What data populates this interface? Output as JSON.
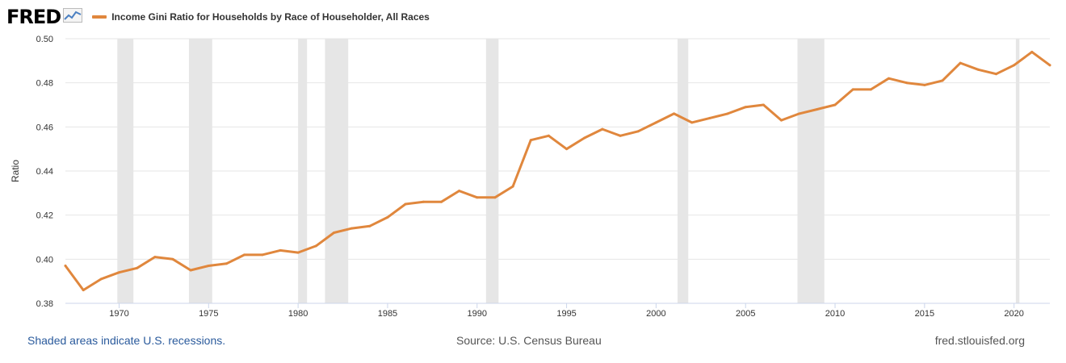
{
  "header": {
    "logo_text": "FRED",
    "logo_icon": "chart-line-icon",
    "legend_label": "Income Gini Ratio for Households by Race of Householder, All Races",
    "accent_color": "#e0873d"
  },
  "footer": {
    "recession_note": "Shaded areas indicate U.S. recessions.",
    "source": "Source: U.S. Census Bureau",
    "site": "fred.stlouisfed.org"
  },
  "chart_data": {
    "type": "line",
    "title": "Income Gini Ratio for Households by Race of Householder, All Races",
    "xlabel": "",
    "ylabel": "Ratio",
    "xlim": [
      1967,
      2022
    ],
    "ylim": [
      0.38,
      0.5
    ],
    "yticks": [
      "0.38",
      "0.40",
      "0.42",
      "0.44",
      "0.46",
      "0.48",
      "0.50"
    ],
    "xticks": [
      "1970",
      "1975",
      "1980",
      "1985",
      "1990",
      "1995",
      "2000",
      "2005",
      "2010",
      "2015",
      "2020"
    ],
    "grid": true,
    "series_color": "#e0873d",
    "recession_color": "#e6e6e6",
    "recessions": [
      [
        1969.9,
        1970.8
      ],
      [
        1973.9,
        1975.2
      ],
      [
        1980.0,
        1980.5
      ],
      [
        1981.5,
        1982.8
      ],
      [
        1990.5,
        1991.2
      ],
      [
        2001.2,
        2001.8
      ],
      [
        2007.9,
        2009.4
      ],
      [
        2020.1,
        2020.3
      ]
    ],
    "series": [
      {
        "x": [
          1967,
          1968,
          1969,
          1970,
          1971,
          1972,
          1973,
          1974,
          1975,
          1976,
          1977,
          1978,
          1979,
          1980,
          1981,
          1982,
          1983,
          1984,
          1985,
          1986,
          1987,
          1988,
          1989,
          1990,
          1991,
          1992,
          1993,
          1994,
          1995,
          1996,
          1997,
          1998,
          1999,
          2000,
          2001,
          2002,
          2003,
          2004,
          2005,
          2006,
          2007,
          2008,
          2009,
          2010,
          2011,
          2012,
          2013,
          2014,
          2015,
          2016,
          2017,
          2018,
          2019,
          2020,
          2021,
          2022
        ],
        "values": [
          0.397,
          0.386,
          0.391,
          0.394,
          0.396,
          0.401,
          0.4,
          0.395,
          0.397,
          0.398,
          0.402,
          0.402,
          0.404,
          0.403,
          0.406,
          0.412,
          0.414,
          0.415,
          0.419,
          0.425,
          0.426,
          0.426,
          0.431,
          0.428,
          0.428,
          0.433,
          0.454,
          0.456,
          0.45,
          0.455,
          0.459,
          0.456,
          0.458,
          0.462,
          0.466,
          0.462,
          0.464,
          0.466,
          0.469,
          0.47,
          0.463,
          0.466,
          0.468,
          0.47,
          0.477,
          0.477,
          0.482,
          0.48,
          0.479,
          0.481,
          0.489,
          0.486,
          0.484,
          0.488,
          0.494,
          0.488
        ]
      }
    ]
  }
}
